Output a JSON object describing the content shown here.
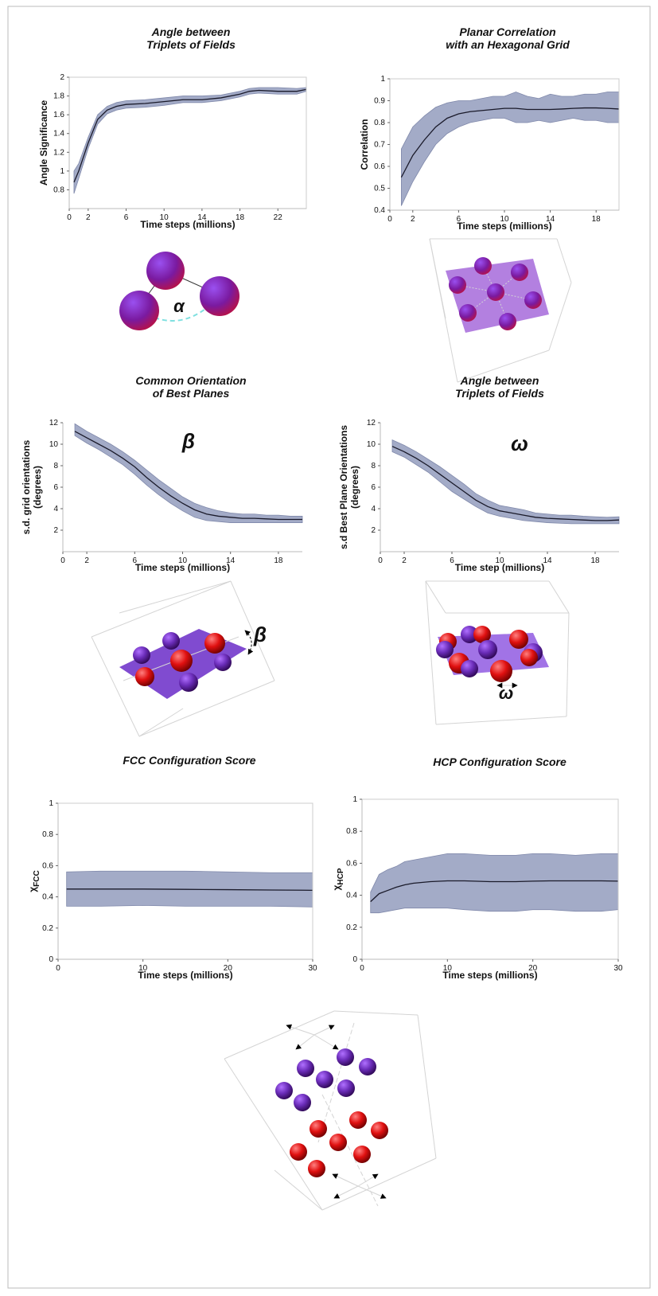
{
  "chart_data": [
    {
      "type": "line",
      "title": [
        "Angle between",
        "Triplets of Fields"
      ],
      "xlabel": "Time steps (millions)",
      "ylabel": [
        "Angle Significance"
      ],
      "x": [
        0.5,
        1,
        2,
        3,
        4,
        5,
        6,
        8,
        10,
        12,
        14,
        16,
        18,
        19,
        20,
        22,
        24,
        25
      ],
      "values": [
        0.88,
        1.0,
        1.3,
        1.55,
        1.65,
        1.69,
        1.71,
        1.72,
        1.74,
        1.76,
        1.76,
        1.78,
        1.82,
        1.85,
        1.86,
        1.85,
        1.85,
        1.87
      ],
      "band_lower": [
        0.76,
        0.92,
        1.24,
        1.5,
        1.61,
        1.65,
        1.67,
        1.68,
        1.7,
        1.73,
        1.73,
        1.75,
        1.79,
        1.82,
        1.83,
        1.82,
        1.82,
        1.85
      ],
      "band_upper": [
        1.0,
        1.08,
        1.36,
        1.6,
        1.69,
        1.73,
        1.75,
        1.76,
        1.78,
        1.8,
        1.8,
        1.81,
        1.85,
        1.88,
        1.89,
        1.89,
        1.88,
        1.89
      ],
      "xlim": [
        0,
        25
      ],
      "ylim": [
        0.6,
        2
      ],
      "xticks": [
        0,
        2,
        6,
        10,
        14,
        18,
        22
      ],
      "yticks": [
        0.8,
        1,
        1.2,
        1.4,
        1.6,
        1.8,
        2
      ],
      "frame": true,
      "line_color": "#1a1a2a",
      "band_color": "#a3abc7"
    },
    {
      "type": "line",
      "title": [
        "Planar Correlation",
        "with an Hexagonal Grid"
      ],
      "xlabel": "Time steps (millions)",
      "ylabel": [
        "Correlation"
      ],
      "x": [
        1,
        2,
        3,
        4,
        5,
        6,
        7,
        8,
        9,
        10,
        11,
        12,
        13,
        14,
        15,
        16,
        17,
        18,
        19,
        20
      ],
      "values": [
        0.55,
        0.65,
        0.72,
        0.78,
        0.82,
        0.84,
        0.85,
        0.855,
        0.86,
        0.865,
        0.865,
        0.86,
        0.86,
        0.86,
        0.862,
        0.865,
        0.867,
        0.867,
        0.865,
        0.862
      ],
      "band_lower": [
        0.42,
        0.53,
        0.62,
        0.7,
        0.75,
        0.78,
        0.8,
        0.81,
        0.82,
        0.82,
        0.8,
        0.8,
        0.81,
        0.8,
        0.81,
        0.82,
        0.81,
        0.81,
        0.8,
        0.8
      ],
      "band_upper": [
        0.68,
        0.78,
        0.83,
        0.87,
        0.89,
        0.9,
        0.9,
        0.91,
        0.92,
        0.92,
        0.94,
        0.92,
        0.91,
        0.93,
        0.92,
        0.92,
        0.93,
        0.93,
        0.94,
        0.94
      ],
      "xlim": [
        0,
        20
      ],
      "ylim": [
        0.4,
        1
      ],
      "xticks": [
        0,
        2,
        6,
        10,
        14,
        18
      ],
      "yticks": [
        0.4,
        0.5,
        0.6,
        0.7,
        0.8,
        0.9,
        1
      ],
      "frame": true,
      "line_color": "#1a1a2a",
      "band_color": "#a3abc7"
    },
    {
      "type": "line",
      "title": [
        "Common Orientation",
        "of Best Planes"
      ],
      "xlabel": "Time steps (millions)",
      "ylabel": [
        "s.d. grid orientations",
        "(degrees)"
      ],
      "annotation": "β",
      "x": [
        1,
        2,
        3,
        4,
        5,
        6,
        7,
        8,
        9,
        10,
        11,
        12,
        13,
        14,
        15,
        16,
        17,
        18,
        19,
        20
      ],
      "values": [
        11.2,
        10.6,
        10,
        9.4,
        8.7,
        7.9,
        6.9,
        6,
        5.2,
        4.5,
        3.9,
        3.5,
        3.3,
        3.2,
        3.1,
        3.1,
        3.05,
        3,
        3,
        3
      ],
      "band_lower": [
        10.8,
        10.1,
        9.5,
        8.8,
        8.1,
        7.2,
        6.2,
        5.3,
        4.5,
        3.8,
        3.2,
        2.9,
        2.8,
        2.7,
        2.7,
        2.7,
        2.7,
        2.7,
        2.7,
        2.7
      ],
      "band_upper": [
        11.9,
        11.2,
        10.6,
        10,
        9.3,
        8.5,
        7.6,
        6.7,
        5.9,
        5.1,
        4.5,
        4.1,
        3.8,
        3.6,
        3.5,
        3.5,
        3.4,
        3.4,
        3.3,
        3.3
      ],
      "xlim": [
        0,
        20
      ],
      "ylim": [
        0,
        12
      ],
      "xticks": [
        0,
        2,
        6,
        10,
        14,
        18
      ],
      "yticks": [
        2,
        4,
        6,
        8,
        10,
        12
      ],
      "frame": false,
      "line_color": "#1a1a2a",
      "band_color": "#a3abc7"
    },
    {
      "type": "line",
      "title": [
        "Angle between",
        "Triplets of Fields"
      ],
      "xlabel": "Time step (millions)",
      "ylabel": [
        "s.d Best Plane Orientations",
        "(degrees)"
      ],
      "annotation": "ω",
      "x": [
        1,
        2,
        3,
        4,
        5,
        6,
        7,
        8,
        9,
        10,
        11,
        12,
        13,
        14,
        15,
        16,
        17,
        18,
        19,
        20
      ],
      "values": [
        9.8,
        9.3,
        8.7,
        8,
        7.2,
        6.4,
        5.6,
        4.8,
        4.2,
        3.8,
        3.6,
        3.4,
        3.2,
        3.1,
        3.05,
        3,
        2.95,
        2.9,
        2.9,
        2.95
      ],
      "band_lower": [
        9.3,
        8.8,
        8.1,
        7.4,
        6.5,
        5.6,
        4.9,
        4.2,
        3.6,
        3.3,
        3.1,
        2.9,
        2.8,
        2.7,
        2.65,
        2.6,
        2.6,
        2.6,
        2.6,
        2.6
      ],
      "band_upper": [
        10.4,
        9.9,
        9.3,
        8.6,
        7.9,
        7.1,
        6.3,
        5.4,
        4.8,
        4.3,
        4.1,
        3.9,
        3.6,
        3.5,
        3.4,
        3.4,
        3.3,
        3.25,
        3.2,
        3.25
      ],
      "xlim": [
        0,
        20
      ],
      "ylim": [
        0,
        12
      ],
      "xticks": [
        0,
        2,
        6,
        10,
        14,
        18
      ],
      "yticks": [
        2,
        4,
        6,
        8,
        10,
        12
      ],
      "frame": false,
      "line_color": "#1a1a2a",
      "band_color": "#a3abc7"
    },
    {
      "type": "line",
      "title": [
        "FCC Configuration Score"
      ],
      "xlabel": "Time steps (millions)",
      "ylabel": [
        "χ"
      ],
      "ylabel_sub": "FCC",
      "x": [
        1,
        5,
        10,
        15,
        20,
        25,
        30
      ],
      "values": [
        0.45,
        0.45,
        0.45,
        0.448,
        0.446,
        0.444,
        0.442
      ],
      "band_lower": [
        0.34,
        0.34,
        0.345,
        0.34,
        0.34,
        0.34,
        0.335
      ],
      "band_upper": [
        0.56,
        0.565,
        0.565,
        0.565,
        0.56,
        0.555,
        0.555
      ],
      "xlim": [
        0,
        30
      ],
      "ylim": [
        0,
        1
      ],
      "xticks": [
        0,
        10,
        20,
        30
      ],
      "yticks": [
        0,
        0.2,
        0.4,
        0.6,
        0.8,
        1
      ],
      "frame": true,
      "line_color": "#1a1a2a",
      "band_color": "#a3abc7"
    },
    {
      "type": "line",
      "title": [
        "HCP Configuration Score"
      ],
      "xlabel": "Time steps (millions)",
      "ylabel": [
        "χ"
      ],
      "ylabel_sub": "HCP",
      "x": [
        1,
        2,
        3,
        4,
        5,
        6,
        8,
        10,
        12,
        15,
        18,
        20,
        22,
        25,
        28,
        30
      ],
      "values": [
        0.36,
        0.41,
        0.43,
        0.45,
        0.465,
        0.475,
        0.485,
        0.49,
        0.49,
        0.485,
        0.485,
        0.488,
        0.49,
        0.49,
        0.49,
        0.488
      ],
      "band_lower": [
        0.29,
        0.29,
        0.3,
        0.31,
        0.32,
        0.32,
        0.32,
        0.32,
        0.31,
        0.3,
        0.3,
        0.31,
        0.31,
        0.3,
        0.3,
        0.31
      ],
      "band_upper": [
        0.42,
        0.53,
        0.56,
        0.58,
        0.61,
        0.62,
        0.64,
        0.66,
        0.66,
        0.65,
        0.65,
        0.66,
        0.66,
        0.65,
        0.66,
        0.66
      ],
      "xlim": [
        0,
        30
      ],
      "ylim": [
        0,
        1
      ],
      "xticks": [
        0,
        10,
        20,
        30
      ],
      "yticks": [
        0,
        0.2,
        0.4,
        0.6,
        0.8,
        1
      ],
      "frame": true,
      "line_color": "#1a1a2a",
      "band_color": "#a3abc7"
    }
  ],
  "diagrams": [
    {
      "label": "α"
    },
    {
      "label": "β"
    },
    {
      "label": "ω"
    }
  ]
}
